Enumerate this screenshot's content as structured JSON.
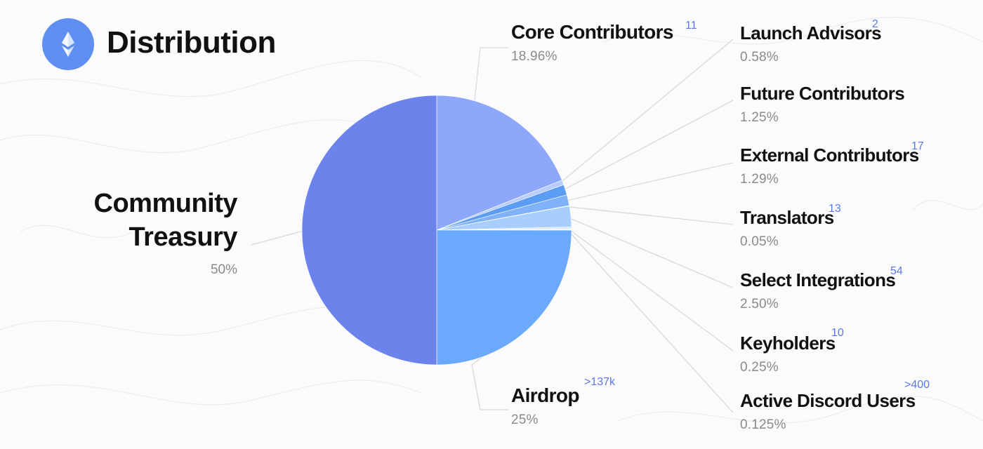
{
  "header": {
    "title": "Distribution",
    "logo_icon": "ens-logo-icon"
  },
  "colors": {
    "treasury": "#6d83ec",
    "core": "#8da8fb",
    "airdrop": "#6aa9fc",
    "light": "#a9cdfc",
    "mid": "#5b9df2",
    "pale": "#dbe7fb",
    "count": "#5a78e6"
  },
  "chart_data": {
    "type": "pie",
    "title": "Distribution",
    "slices": [
      {
        "name": "Community Treasury",
        "pct_label": "50%",
        "value": 50,
        "count": "",
        "color": "#6d83ec"
      },
      {
        "name": "Core Contributors",
        "pct_label": "18.96%",
        "value": 18.96,
        "count": "11",
        "color": "#8da8fb"
      },
      {
        "name": "Launch Advisors",
        "pct_label": "0.58%",
        "value": 0.58,
        "count": "2",
        "color": "#b9ccfb"
      },
      {
        "name": "Future Contributors",
        "pct_label": "1.25%",
        "value": 1.25,
        "count": "",
        "color": "#5b9df2"
      },
      {
        "name": "External Contributors",
        "pct_label": "1.29%",
        "value": 1.29,
        "count": "17",
        "color": "#7fb2f8"
      },
      {
        "name": "Translators",
        "pct_label": "0.05%",
        "value": 0.05,
        "count": "13",
        "color": "#e3ecfb"
      },
      {
        "name": "Select Integrations",
        "pct_label": "2.50%",
        "value": 2.5,
        "count": "54",
        "color": "#a9cdfc"
      },
      {
        "name": "Keyholders",
        "pct_label": "0.25%",
        "value": 0.25,
        "count": "10",
        "color": "#dbe7fb"
      },
      {
        "name": "Active Discord Users",
        "pct_label": "0.125%",
        "value": 0.125,
        "count": ">400",
        "color": "#eef3fc"
      },
      {
        "name": "Airdrop",
        "pct_label": "25%",
        "value": 25,
        "count": ">137k",
        "color": "#6aa9fc"
      }
    ]
  }
}
